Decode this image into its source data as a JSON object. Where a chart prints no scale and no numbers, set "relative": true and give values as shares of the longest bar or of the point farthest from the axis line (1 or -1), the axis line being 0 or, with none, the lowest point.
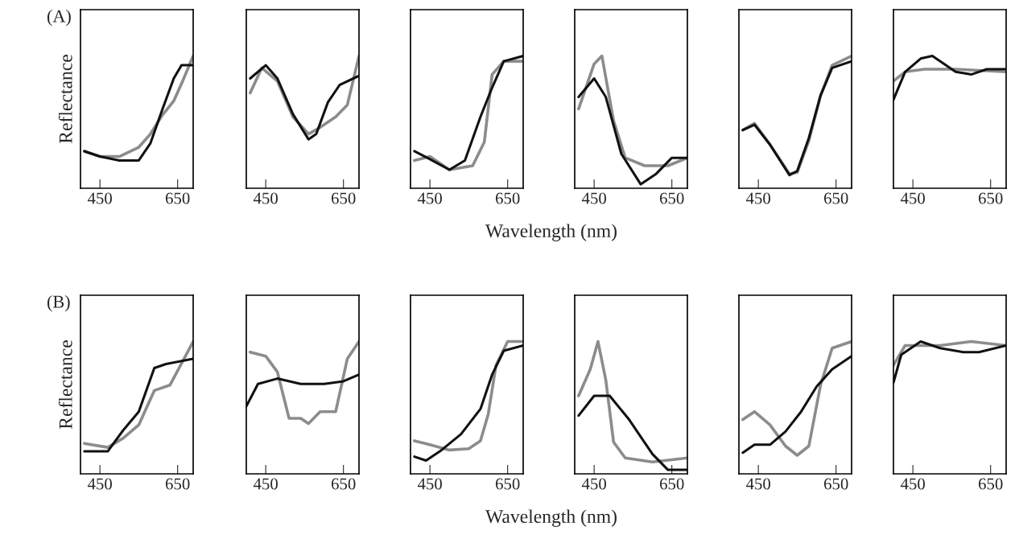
{
  "chart_data": [
    {
      "type": "line",
      "title": "(A)",
      "ylabel": "Reflectance",
      "relative": true,
      "xlim": [
        400,
        690
      ],
      "xticks": [
        450,
        650
      ],
      "tick_labels": "x",
      "series": [
        {
          "color": "#8c8c8c",
          "x": [
            410,
            450,
            500,
            550,
            580,
            610,
            640,
            660,
            690
          ],
          "values": [
            0.28,
            0.24,
            0.24,
            0.31,
            0.41,
            0.55,
            0.66,
            0.79,
            1
          ]
        },
        {
          "color": "#111111",
          "x": [
            410,
            450,
            500,
            550,
            580,
            610,
            640,
            660,
            690
          ],
          "values": [
            0.28,
            0.24,
            0.21,
            0.21,
            0.34,
            0.59,
            0.83,
            0.93,
            0.93
          ]
        }
      ]
    },
    {
      "type": "line",
      "relative": true,
      "xlim": [
        400,
        690
      ],
      "xticks": [
        450,
        650
      ],
      "tick_labels": "x",
      "series": [
        {
          "color": "#8c8c8c",
          "x": [
            410,
            440,
            480,
            520,
            560,
            590,
            630,
            660,
            690
          ],
          "values": [
            0.72,
            0.91,
            0.81,
            0.54,
            0.41,
            0.46,
            0.54,
            0.63,
            1
          ]
        },
        {
          "color": "#111111",
          "x": [
            410,
            450,
            480,
            520,
            560,
            580,
            610,
            640,
            690
          ],
          "values": [
            0.83,
            0.93,
            0.83,
            0.56,
            0.37,
            0.41,
            0.65,
            0.78,
            0.85
          ]
        }
      ]
    },
    {
      "type": "line",
      "xlabel": "Wavelength (nm)",
      "relative": true,
      "xlim": [
        400,
        690
      ],
      "xticks": [
        450,
        650
      ],
      "tick_labels": "x",
      "series": [
        {
          "color": "#8c8c8c",
          "x": [
            410,
            450,
            500,
            560,
            590,
            610,
            640,
            690
          ],
          "values": [
            0.21,
            0.24,
            0.14,
            0.17,
            0.35,
            0.86,
            0.96,
            0.96
          ]
        },
        {
          "color": "#111111",
          "x": [
            410,
            450,
            500,
            540,
            580,
            610,
            640,
            690
          ],
          "values": [
            0.28,
            0.22,
            0.14,
            0.21,
            0.54,
            0.76,
            0.96,
            1
          ]
        }
      ]
    },
    {
      "type": "line",
      "relative": true,
      "xlim": [
        400,
        690
      ],
      "xticks": [
        450,
        650
      ],
      "tick_labels": "x",
      "series": [
        {
          "color": "#8c8c8c",
          "x": [
            410,
            450,
            470,
            500,
            530,
            580,
            640,
            690
          ],
          "values": [
            0.6,
            0.94,
            1,
            0.51,
            0.23,
            0.17,
            0.17,
            0.23
          ]
        },
        {
          "color": "#111111",
          "x": [
            410,
            450,
            480,
            520,
            570,
            610,
            650,
            690
          ],
          "values": [
            0.69,
            0.83,
            0.69,
            0.26,
            0.03,
            0.11,
            0.23,
            0.23
          ]
        }
      ]
    },
    {
      "type": "line",
      "relative": true,
      "xlim": [
        400,
        690
      ],
      "xticks": [
        450,
        650
      ],
      "tick_labels": "x",
      "series": [
        {
          "color": "#8c8c8c",
          "x": [
            410,
            440,
            480,
            530,
            550,
            580,
            610,
            640,
            690
          ],
          "values": [
            0.44,
            0.49,
            0.33,
            0.11,
            0.12,
            0.36,
            0.7,
            0.93,
            1
          ]
        },
        {
          "color": "#111111",
          "x": [
            410,
            440,
            480,
            530,
            550,
            580,
            610,
            640,
            690
          ],
          "values": [
            0.44,
            0.48,
            0.33,
            0.1,
            0.13,
            0.38,
            0.7,
            0.91,
            0.96
          ]
        }
      ]
    },
    {
      "type": "line",
      "relative": true,
      "xlim": [
        400,
        690
      ],
      "xticks": [
        450,
        650
      ],
      "tick_labels": "x",
      "series": [
        {
          "color": "#8c8c8c",
          "x": [
            400,
            430,
            480,
            560,
            690
          ],
          "values": [
            0.81,
            0.88,
            0.9,
            0.9,
            0.88
          ]
        },
        {
          "color": "#111111",
          "x": [
            400,
            430,
            470,
            500,
            560,
            600,
            640,
            690
          ],
          "values": [
            0.67,
            0.88,
            0.98,
            1,
            0.88,
            0.86,
            0.9,
            0.9
          ]
        }
      ]
    },
    {
      "type": "line",
      "title": "(B)",
      "ylabel": "Reflectance",
      "relative": true,
      "xlim": [
        400,
        690
      ],
      "xticks": [
        450,
        650
      ],
      "tick_labels": "x",
      "series": [
        {
          "color": "#8c8c8c",
          "x": [
            410,
            470,
            510,
            550,
            590,
            630,
            690
          ],
          "values": [
            0.23,
            0.2,
            0.27,
            0.37,
            0.63,
            0.67,
            1
          ]
        },
        {
          "color": "#111111",
          "x": [
            410,
            470,
            510,
            550,
            590,
            620,
            690
          ],
          "values": [
            0.17,
            0.17,
            0.33,
            0.47,
            0.8,
            0.83,
            0.87
          ]
        }
      ]
    },
    {
      "type": "line",
      "relative": true,
      "xlim": [
        400,
        690
      ],
      "xticks": [
        450,
        650
      ],
      "tick_labels": "x",
      "series": [
        {
          "color": "#8c8c8c",
          "x": [
            410,
            450,
            480,
            510,
            540,
            560,
            590,
            630,
            660,
            690
          ],
          "values": [
            0.92,
            0.89,
            0.77,
            0.42,
            0.42,
            0.38,
            0.47,
            0.47,
            0.87,
            1
          ]
        },
        {
          "color": "#111111",
          "x": [
            400,
            430,
            480,
            540,
            600,
            650,
            690
          ],
          "values": [
            0.51,
            0.68,
            0.72,
            0.68,
            0.68,
            0.7,
            0.75
          ]
        }
      ]
    },
    {
      "type": "line",
      "xlabel": "Wavelength (nm)",
      "relative": true,
      "xlim": [
        400,
        690
      ],
      "xticks": [
        450,
        650
      ],
      "tick_labels": "x",
      "series": [
        {
          "color": "#8c8c8c",
          "x": [
            410,
            450,
            500,
            550,
            580,
            600,
            620,
            650,
            690
          ],
          "values": [
            0.25,
            0.22,
            0.18,
            0.19,
            0.25,
            0.45,
            0.82,
            1,
            1
          ]
        },
        {
          "color": "#111111",
          "x": [
            410,
            440,
            480,
            530,
            580,
            610,
            640,
            690
          ],
          "values": [
            0.13,
            0.1,
            0.18,
            0.3,
            0.49,
            0.75,
            0.93,
            0.97
          ]
        }
      ]
    },
    {
      "type": "line",
      "relative": true,
      "xlim": [
        400,
        690
      ],
      "xticks": [
        450,
        650
      ],
      "tick_labels": "x",
      "series": [
        {
          "color": "#8c8c8c",
          "x": [
            410,
            440,
            460,
            480,
            500,
            530,
            600,
            690
          ],
          "values": [
            0.59,
            0.79,
            1,
            0.71,
            0.24,
            0.12,
            0.09,
            0.12
          ]
        },
        {
          "color": "#111111",
          "x": [
            410,
            450,
            490,
            540,
            600,
            640,
            690
          ],
          "values": [
            0.44,
            0.59,
            0.59,
            0.41,
            0.15,
            0.03,
            0.03
          ]
        }
      ]
    },
    {
      "type": "line",
      "relative": true,
      "xlim": [
        400,
        690
      ],
      "xticks": [
        450,
        650
      ],
      "tick_labels": "x",
      "series": [
        {
          "color": "#8c8c8c",
          "x": [
            410,
            440,
            480,
            520,
            550,
            580,
            610,
            640,
            690
          ],
          "values": [
            0.41,
            0.47,
            0.37,
            0.21,
            0.14,
            0.21,
            0.67,
            0.95,
            1
          ]
        },
        {
          "color": "#111111",
          "x": [
            410,
            440,
            480,
            520,
            560,
            600,
            640,
            690
          ],
          "values": [
            0.16,
            0.22,
            0.22,
            0.32,
            0.47,
            0.66,
            0.79,
            0.89
          ]
        }
      ]
    },
    {
      "type": "line",
      "relative": true,
      "xlim": [
        400,
        690
      ],
      "xticks": [
        450,
        650
      ],
      "tick_labels": "x",
      "series": [
        {
          "color": "#8c8c8c",
          "x": [
            400,
            430,
            520,
            600,
            690
          ],
          "values": [
            0.82,
            0.97,
            0.97,
            1,
            0.97
          ]
        },
        {
          "color": "#111111",
          "x": [
            400,
            420,
            470,
            520,
            580,
            620,
            690
          ],
          "values": [
            0.69,
            0.9,
            1,
            0.95,
            0.92,
            0.92,
            0.97
          ]
        }
      ]
    }
  ]
}
